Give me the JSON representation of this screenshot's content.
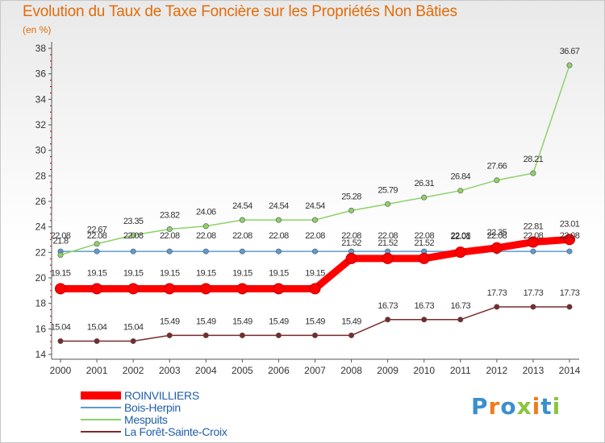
{
  "chart_data": {
    "type": "line",
    "title": "Evolution du Taux de Taxe Foncière sur les Propriétés Non Bâties",
    "ylabel": "(en %)",
    "xlabel": "",
    "x": [
      "2000",
      "2001",
      "2002",
      "2003",
      "2004",
      "2005",
      "2006",
      "2007",
      "2008",
      "2009",
      "2010",
      "2011",
      "2012",
      "2013",
      "2014"
    ],
    "ylim": [
      14,
      38
    ],
    "yticks": [
      "14",
      "16",
      "18",
      "20",
      "22",
      "24",
      "26",
      "28",
      "30",
      "32",
      "34",
      "36",
      "38"
    ],
    "grid": false,
    "series": [
      {
        "name": "ROINVILLIERS",
        "color": "#ff0000",
        "values": [
          19.15,
          19.15,
          19.15,
          19.15,
          19.15,
          19.15,
          19.15,
          19.15,
          21.52,
          21.52,
          21.52,
          22.01,
          22.35,
          22.81,
          23.01
        ],
        "labels": [
          "19.15",
          "19.15",
          "19.15",
          "19.15",
          "19.15",
          "19.15",
          "19.15",
          "19.15",
          "21.52",
          "21.52",
          "21.52",
          "22.01",
          "22.35",
          "22.81",
          "23.01"
        ]
      },
      {
        "name": "Bois-Herpin",
        "color": "#5b9bd5",
        "values": [
          22.08,
          22.08,
          22.08,
          22.08,
          22.08,
          22.08,
          22.08,
          22.08,
          22.08,
          22.08,
          22.08,
          22.08,
          22.08,
          22.08,
          22.08
        ],
        "labels": [
          "22.08",
          "22.08",
          "22.08",
          "22.08",
          "22.08",
          "22.08",
          "22.08",
          "22.08",
          "22.08",
          "22.08",
          "22.08",
          "22.08",
          "22.08",
          "22.08",
          "22.08"
        ]
      },
      {
        "name": "Mespuits",
        "color": "#8fd16a",
        "values": [
          21.8,
          22.67,
          23.35,
          23.82,
          24.06,
          24.54,
          24.54,
          24.54,
          25.28,
          25.79,
          26.31,
          26.84,
          27.66,
          28.21,
          36.67
        ],
        "labels": [
          "21.8",
          "22.67",
          "23.35",
          "23.82",
          "24.06",
          "24.54",
          "24.54",
          "24.54",
          "25.28",
          "25.79",
          "26.31",
          "26.84",
          "27.66",
          "28.21",
          "36.67"
        ]
      },
      {
        "name": "La Forêt-Sainte-Croix",
        "color": "#7b2a2a",
        "values": [
          15.04,
          15.04,
          15.04,
          15.49,
          15.49,
          15.49,
          15.49,
          15.49,
          15.49,
          16.73,
          16.73,
          16.73,
          17.73,
          17.73,
          17.73
        ],
        "labels": [
          "15.04",
          "15.04",
          "15.04",
          "15.49",
          "15.49",
          "15.49",
          "15.49",
          "15.49",
          "15.49",
          "16.73",
          "16.73",
          "16.73",
          "17.73",
          "17.73",
          "17.73"
        ]
      }
    ]
  },
  "logo": {
    "text": "Proxiti"
  }
}
